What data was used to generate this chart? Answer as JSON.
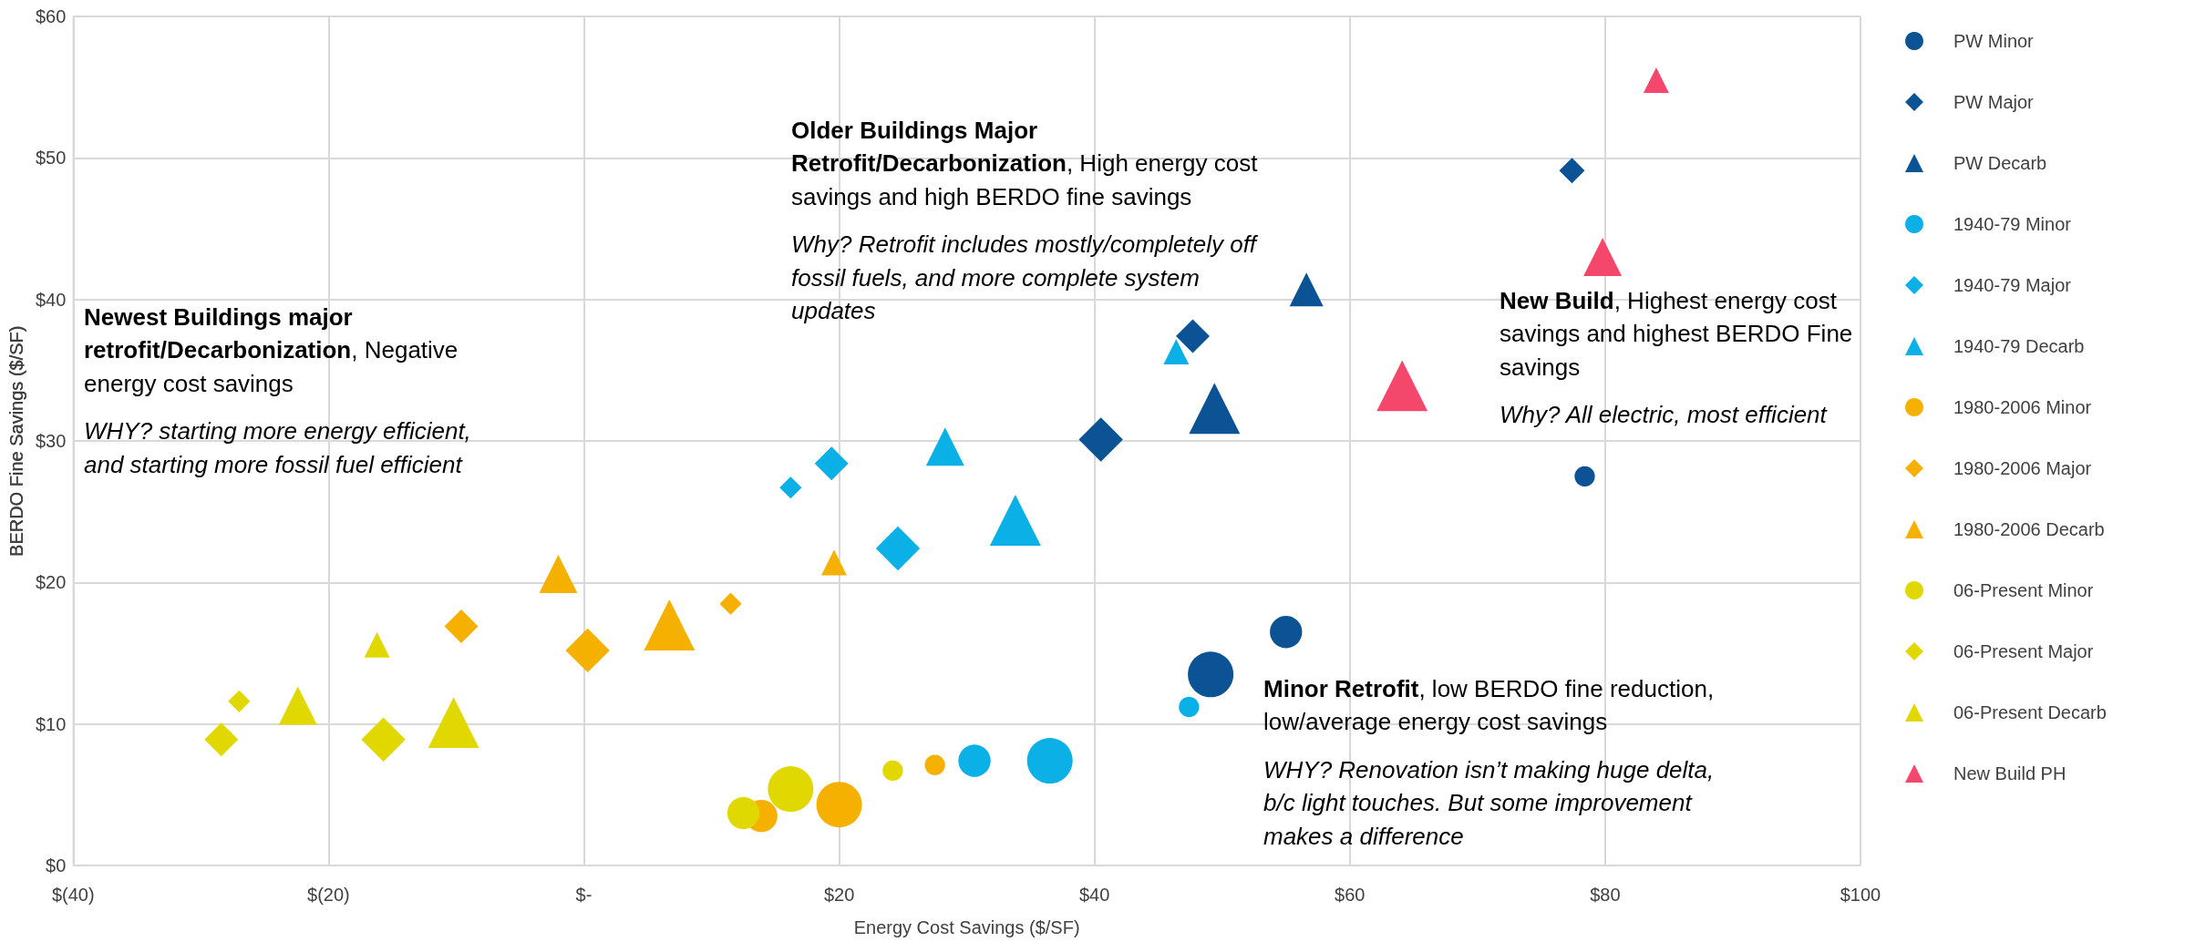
{
  "chart_data": {
    "type": "bubble",
    "xlabel": "Energy Cost Savings ($/SF)",
    "ylabel": "BERDO Fine Savings ($/SF)",
    "xlim": [
      -40,
      100
    ],
    "xticks": [
      {
        "value": -40,
        "label": "$(40)"
      },
      {
        "value": -20,
        "label": "$(20)"
      },
      {
        "value": 0,
        "label": "$-"
      },
      {
        "value": 20,
        "label": "$20"
      },
      {
        "value": 40,
        "label": "$40"
      },
      {
        "value": 60,
        "label": "$60"
      },
      {
        "value": 80,
        "label": "$80"
      },
      {
        "value": 100,
        "label": "$100"
      }
    ],
    "ylim": [
      0,
      60
    ],
    "yticks": [
      {
        "value": 0,
        "label": "$0"
      },
      {
        "value": 10,
        "label": "$10"
      },
      {
        "value": 20,
        "label": "$20"
      },
      {
        "value": 30,
        "label": "$30"
      },
      {
        "value": 40,
        "label": "$40"
      },
      {
        "value": 50,
        "label": "$50"
      },
      {
        "value": 60,
        "label": "$60"
      }
    ],
    "grid": true,
    "legend": "right",
    "series": [
      {
        "name": "PW Minor",
        "color": "#0b5394",
        "marker": "circle",
        "x": [
          78.4,
          55.0,
          49.1
        ],
        "values": [
          27.5,
          16.5,
          13.5
        ],
        "sizes": [
          0.2,
          0.5,
          1
        ]
      },
      {
        "name": "PW Major",
        "color": "#0b5394",
        "marker": "diamond",
        "x": [
          77.4,
          47.7,
          40.5
        ],
        "values": [
          49.1,
          37.4,
          30.1
        ],
        "sizes": [
          0.2,
          0.35,
          0.6
        ]
      },
      {
        "name": "PW Decarb",
        "color": "#0b5394",
        "marker": "triangle",
        "x": [
          56.6,
          49.4
        ],
        "values": [
          40.7,
          32.3
        ],
        "sizes": [
          0.35,
          0.8
        ]
      },
      {
        "name": "1940-79 Minor",
        "color": "#0ab0e6",
        "marker": "circle",
        "x": [
          47.4,
          30.6,
          36.5
        ],
        "values": [
          11.2,
          7.4,
          7.4
        ],
        "sizes": [
          0.2,
          0.5,
          1
        ]
      },
      {
        "name": "1940-79 Major",
        "color": "#0ab0e6",
        "marker": "diamond",
        "x": [
          16.2,
          19.4,
          24.6
        ],
        "values": [
          26.7,
          28.4,
          22.4
        ],
        "sizes": [
          0.15,
          0.35,
          0.6
        ]
      },
      {
        "name": "1940-79 Decarb",
        "color": "#0ab0e6",
        "marker": "triangle",
        "x": [
          46.4,
          28.3,
          33.8
        ],
        "values": [
          36.3,
          29.6,
          24.4
        ],
        "sizes": [
          0.2,
          0.45,
          0.8
        ]
      },
      {
        "name": "1980-2006 Minor",
        "color": "#f5b000",
        "marker": "circle",
        "x": [
          27.5,
          13.9,
          20.0
        ],
        "values": [
          7.1,
          3.5,
          4.3
        ],
        "sizes": [
          0.2,
          0.5,
          1
        ]
      },
      {
        "name": "1980-2006 Major",
        "color": "#f5b000",
        "marker": "diamond",
        "x": [
          11.5,
          -9.6,
          0.3
        ],
        "values": [
          18.5,
          16.9,
          15.2
        ],
        "sizes": [
          0.15,
          0.35,
          0.6
        ]
      },
      {
        "name": "1980-2006 Decarb",
        "color": "#f5b000",
        "marker": "triangle",
        "x": [
          19.6,
          -2.0,
          6.7
        ],
        "values": [
          21.4,
          20.6,
          17.0
        ],
        "sizes": [
          0.2,
          0.45,
          0.8
        ]
      },
      {
        "name": "06-Present Minor",
        "color": "#e0d800",
        "marker": "circle",
        "x": [
          24.2,
          12.5,
          16.2
        ],
        "values": [
          6.7,
          3.7,
          5.4
        ],
        "sizes": [
          0.2,
          0.5,
          1
        ]
      },
      {
        "name": "06-Present Major",
        "color": "#e0d800",
        "marker": "diamond",
        "x": [
          -27.0,
          -28.4,
          -15.7
        ],
        "values": [
          11.6,
          8.9,
          8.9
        ],
        "sizes": [
          0.15,
          0.35,
          0.6
        ]
      },
      {
        "name": "06-Present Decarb",
        "color": "#e0d800",
        "marker": "triangle",
        "x": [
          -16.2,
          -22.4,
          -10.2
        ],
        "values": [
          15.6,
          11.3,
          10.1
        ],
        "sizes": [
          0.2,
          0.45,
          0.8
        ]
      },
      {
        "name": "New Build PH",
        "color": "#f4476b",
        "marker": "triangle",
        "x": [
          84.0,
          79.8,
          64.1
        ],
        "values": [
          55.5,
          43.0,
          33.9
        ],
        "sizes": [
          0.2,
          0.45,
          0.8
        ]
      }
    ],
    "annotations": [
      "Newest Buildings major retrofit/Decarbonization, Negative energy cost savings",
      "WHY? starting more energy efficient, and starting more fossil fuel efficient",
      "Older Buildings Major Retrofit/Decarbonization, High energy cost savings and high BERDO fine savings",
      "Why? Retrofit includes mostly/completely off fossil fuels, and more complete system updates",
      "New Build, Highest energy cost savings and highest  BERDO Fine savings",
      "Why? All electric, most efficient",
      "Minor Retrofit, low BERDO fine reduction, low/average energy cost savings",
      "WHY? Renovation isn’t making huge delta, b/c light touches. But some improvement makes a difference"
    ]
  }
}
